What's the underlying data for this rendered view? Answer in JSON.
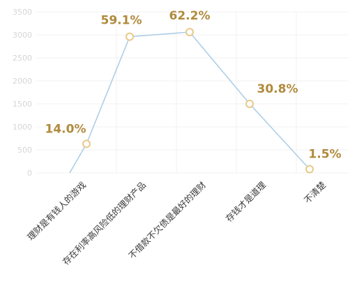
{
  "chart_data": {
    "type": "line",
    "title": "",
    "xlabel": "",
    "ylabel": "",
    "ylim": [
      0,
      3500
    ],
    "yticks": [
      0,
      500,
      1000,
      1500,
      2000,
      2500,
      3000,
      3500
    ],
    "grid": true,
    "categories": [
      "理财是有钱人的游戏",
      "存在利率高风险低的理财产品",
      "不借款不欠债是最好的理财",
      "存钱才是道理",
      "不清楚"
    ],
    "series": [
      {
        "values": [
          630,
          2960,
          3060,
          1500,
          80
        ],
        "labels": [
          "14.0%",
          "59.1%",
          "62.2%",
          "30.8%",
          "1.5%"
        ]
      }
    ],
    "colors": {
      "line": "#a9cce6",
      "marker_stroke": "#e8c98a",
      "data_label": "#b08a3c",
      "grid": "#f0f0f0",
      "tick": "#d5d5d5"
    }
  }
}
